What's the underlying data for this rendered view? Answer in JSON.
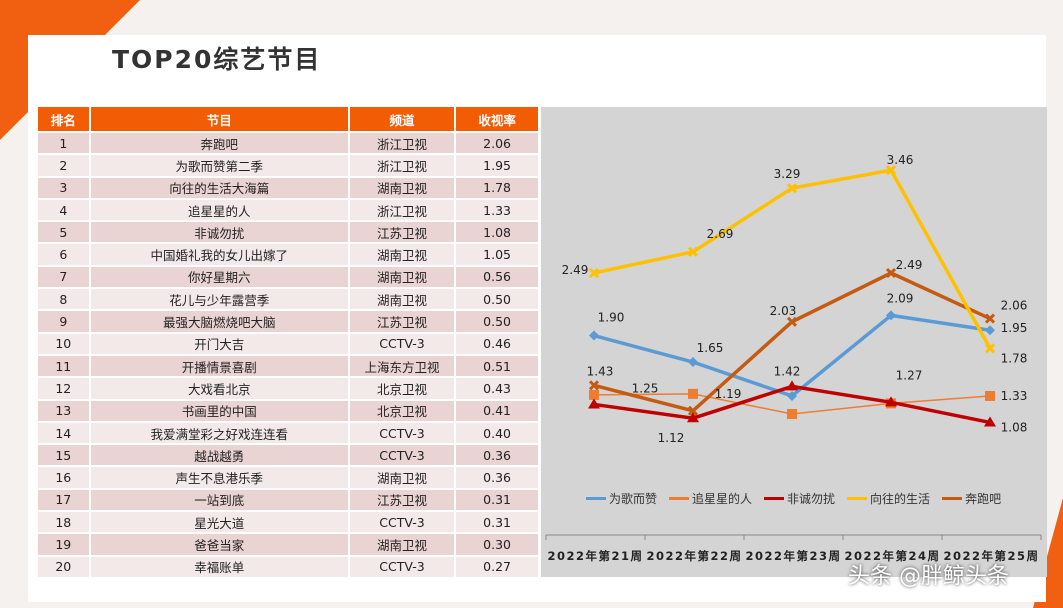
{
  "title": "TOP20综艺节目",
  "table": {
    "headers": [
      "排名",
      "节目",
      "频道",
      "收视率"
    ],
    "rows": [
      [
        "1",
        "奔跑吧",
        "浙江卫视",
        "2.06"
      ],
      [
        "2",
        "为歌而赞第二季",
        "浙江卫视",
        "1.95"
      ],
      [
        "3",
        "向往的生活大海篇",
        "湖南卫视",
        "1.78"
      ],
      [
        "4",
        "追星星的人",
        "浙江卫视",
        "1.33"
      ],
      [
        "5",
        "非诚勿扰",
        "江苏卫视",
        "1.08"
      ],
      [
        "6",
        "中国婚礼我的女儿出嫁了",
        "湖南卫视",
        "1.05"
      ],
      [
        "7",
        "你好星期六",
        "湖南卫视",
        "0.56"
      ],
      [
        "8",
        "花儿与少年露营季",
        "湖南卫视",
        "0.50"
      ],
      [
        "9",
        "最强大脑燃烧吧大脑",
        "江苏卫视",
        "0.50"
      ],
      [
        "10",
        "开门大吉",
        "CCTV-3",
        "0.46"
      ],
      [
        "11",
        "开播情景喜剧",
        "上海东方卫视",
        "0.51"
      ],
      [
        "12",
        "大戏看北京",
        "北京卫视",
        "0.43"
      ],
      [
        "13",
        "书画里的中国",
        "北京卫视",
        "0.41"
      ],
      [
        "14",
        "我爱满堂彩之好戏连连看",
        "CCTV-3",
        "0.40"
      ],
      [
        "15",
        "越战越勇",
        "CCTV-3",
        "0.36"
      ],
      [
        "16",
        "声生不息港乐季",
        "湖南卫视",
        "0.36"
      ],
      [
        "17",
        "一站到底",
        "江苏卫视",
        "0.31"
      ],
      [
        "18",
        "星光大道",
        "CCTV-3",
        "0.31"
      ],
      [
        "19",
        "爸爸当家",
        "湖南卫视",
        "0.30"
      ],
      [
        "20",
        "幸福账单",
        "CCTV-3",
        "0.27"
      ]
    ]
  },
  "chart_data": {
    "type": "line",
    "categories": [
      "2022年第21周",
      "2022年第22周",
      "2022年第23周",
      "2022年第24周",
      "2022年第25周"
    ],
    "legend_position": "bottom",
    "grid": false,
    "series": [
      {
        "name": "为歌而赞",
        "color": "#5b9bd5",
        "marker": "diamond",
        "values": [
          1.9,
          1.65,
          1.33,
          2.09,
          1.95
        ],
        "labels": [
          "1.90",
          "1.65",
          null,
          "2.09",
          "1.95"
        ]
      },
      {
        "name": "追星星的人",
        "color": "#ed7d31",
        "marker": "square",
        "values": [
          1.34,
          1.35,
          1.16,
          1.26,
          1.33
        ],
        "labels": [
          null,
          null,
          null,
          null,
          "1.33"
        ]
      },
      {
        "name": "非诚勿扰",
        "color": "#c00000",
        "marker": "triangle",
        "values": [
          1.25,
          1.12,
          1.42,
          1.27,
          1.08
        ],
        "labels": [
          "1.25",
          "1.12",
          "1.42",
          "1.27",
          "1.08"
        ]
      },
      {
        "name": "向往的生活",
        "color": "#ffc000",
        "marker": "cross",
        "values": [
          2.49,
          2.69,
          3.29,
          3.46,
          1.78
        ],
        "labels": [
          "2.49",
          "2.69",
          "3.29",
          "3.46",
          "1.78"
        ]
      },
      {
        "name": "奔跑吧",
        "color": "#c55a11",
        "marker": "cross",
        "values": [
          1.43,
          1.19,
          2.03,
          2.49,
          2.06
        ],
        "labels": [
          "1.43",
          "1.19",
          "2.03",
          "2.49",
          "2.06"
        ]
      }
    ]
  },
  "watermark": "头条 @胖鲸头条"
}
